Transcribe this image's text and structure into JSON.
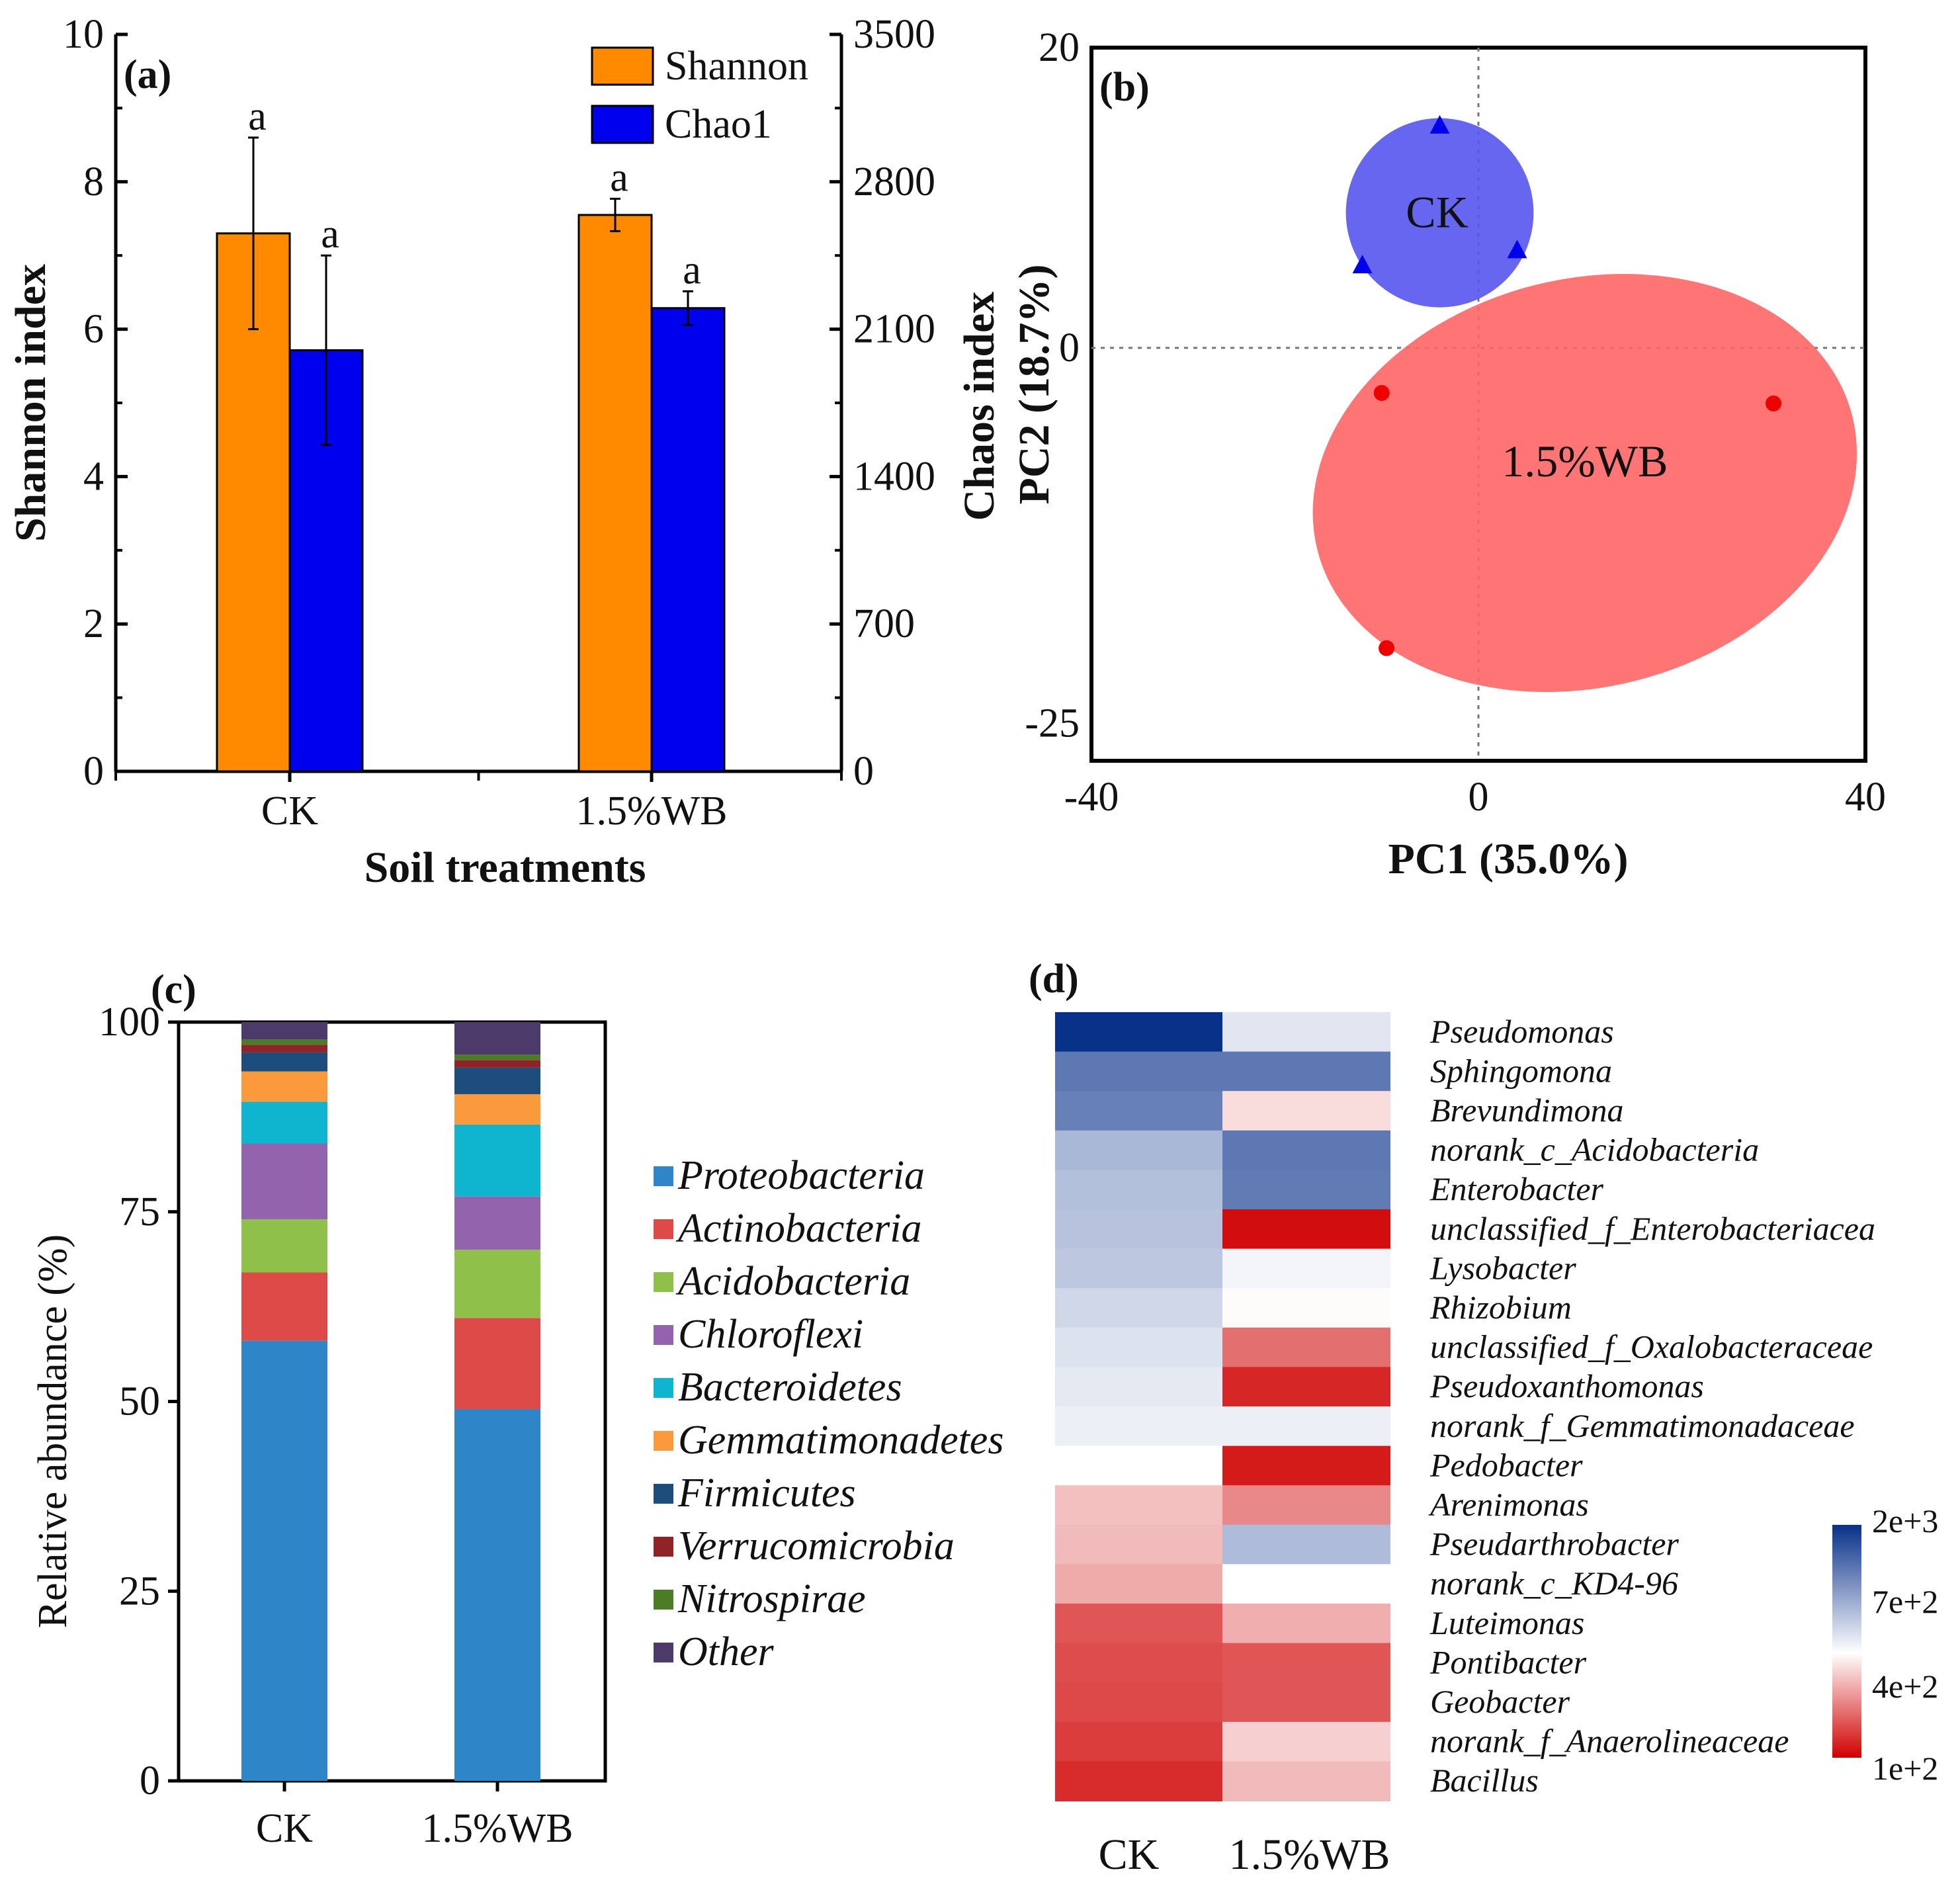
{
  "chart_data": [
    {
      "panel": "(a)",
      "type": "bar",
      "categories": [
        "CK",
        "1.5%WB"
      ],
      "series": [
        {
          "name": "Shannon",
          "axis": "left",
          "color": "#FF8A00",
          "values": [
            7.3,
            7.55
          ],
          "errors": [
            1.3,
            0.22
          ],
          "letters": [
            "a",
            "a"
          ]
        },
        {
          "name": "Chao1",
          "axis": "right",
          "color": "#0000EE",
          "values": [
            2000,
            2200
          ],
          "errors": [
            450,
            80
          ],
          "letters": [
            "a",
            "a"
          ]
        }
      ],
      "xlabel": "Soil treatments",
      "ylabel": "Shannon index",
      "y2label": "Chaos index",
      "ylim": [
        0,
        10
      ],
      "y2lim": [
        0,
        3500
      ],
      "yticks": [
        0,
        2,
        4,
        6,
        8,
        10
      ],
      "y2ticks": [
        0,
        700,
        1400,
        2100,
        2800,
        3500
      ],
      "legend_position": "top-right"
    },
    {
      "panel": "(b)",
      "type": "scatter",
      "xlabel": "PC1 (35.0%)",
      "ylabel": "PC2 (18.7%)",
      "xlim": [
        -40,
        40
      ],
      "ylim": [
        -27.5,
        20
      ],
      "xticks": [
        -40,
        0,
        40
      ],
      "yticks": [
        -25,
        0,
        20
      ],
      "groups": [
        {
          "name": "CK",
          "label": "CK",
          "marker": "triangle",
          "color": "#0000EE",
          "ellipse_color": "#5555EE",
          "points": [
            [
              -4,
              14.8
            ],
            [
              -12,
              5.5
            ],
            [
              4,
              6.5
            ]
          ],
          "ellipse": {
            "cx": -4,
            "cy": 9,
            "rx": 9.7,
            "ry": 6.3,
            "angle": 0
          }
        },
        {
          "name": "1.5%WB",
          "label": "1.5%WB",
          "marker": "circle",
          "color": "#EE0000",
          "ellipse_color": "#FF6666",
          "points": [
            [
              -10,
              -3
            ],
            [
              30.5,
              -3.7
            ],
            [
              -9.5,
              -20
            ]
          ],
          "ellipse": {
            "cx": 11,
            "cy": -9,
            "rx": 28.5,
            "ry": 13.6,
            "angle": -14
          }
        }
      ]
    },
    {
      "panel": "(c)",
      "type": "bar",
      "stacked": true,
      "categories": [
        "CK",
        "1.5%WB"
      ],
      "ylabel": "Relative abundance (%)",
      "ylim": [
        0,
        100
      ],
      "yticks": [
        0,
        25,
        50,
        75,
        100
      ],
      "series": [
        {
          "name": "Proteobacteria",
          "color": "#2E86C8",
          "values": [
            58,
            49
          ]
        },
        {
          "name": "Actinobacteria",
          "color": "#DD4A48",
          "values": [
            9,
            12
          ]
        },
        {
          "name": "Acidobacteria",
          "color": "#8FC049",
          "values": [
            7,
            9
          ]
        },
        {
          "name": "Chloroflexi",
          "color": "#9363AD",
          "values": [
            10,
            7
          ]
        },
        {
          "name": "Bacteroidetes",
          "color": "#0FB4CE",
          "values": [
            5.5,
            9.5
          ]
        },
        {
          "name": "Gemmatimonadetes",
          "color": "#FB9A3C",
          "values": [
            4,
            4
          ]
        },
        {
          "name": "Firmicutes",
          "color": "#1C4D7C",
          "values": [
            2.5,
            3.5
          ]
        },
        {
          "name": "Verrucomicrobia",
          "color": "#8F2327",
          "values": [
            1.0,
            1.0
          ]
        },
        {
          "name": "Nitrospirae",
          "color": "#4D7C26",
          "values": [
            0.7,
            0.7
          ]
        },
        {
          "name": "Other",
          "color": "#4C3B6A",
          "values": [
            2.3,
            4.3
          ]
        }
      ],
      "legend_position": "right"
    },
    {
      "panel": "(d)",
      "type": "heatmap",
      "columns": [
        "CK",
        "1.5%WB"
      ],
      "rows": [
        "Pseudomonas",
        "Sphingomona",
        "Brevundimona",
        "norank_c_Acidobacteria",
        "Enterobacter",
        "unclassified_f_Enterobacteriacea",
        "Lysobacter",
        "Rhizobium",
        "unclassified_f_Oxalobacteraceae",
        "Pseudoxanthomonas",
        "norank_f_Gemmatimonadaceae",
        "Pedobacter",
        "Arenimonas",
        "Pseudarthrobacter",
        "norank_c_KD4-96",
        "Luteimonas",
        "Pontibacter",
        "Geobacter",
        "norank_f_Anaerolineaceae",
        "Bacillus"
      ],
      "values": [
        [
          2000,
          860
        ],
        [
          1550,
          1550
        ],
        [
          1500,
          620
        ],
        [
          1150,
          1550
        ],
        [
          1100,
          1530
        ],
        [
          1080,
          130
        ],
        [
          1050,
          760
        ],
        [
          950,
          690
        ],
        [
          880,
          360
        ],
        [
          840,
          190
        ],
        [
          800,
          800
        ],
        [
          700,
          160
        ],
        [
          550,
          420
        ],
        [
          540,
          1120
        ],
        [
          500,
          700
        ],
        [
          300,
          510
        ],
        [
          280,
          300
        ],
        [
          270,
          300
        ],
        [
          240,
          590
        ],
        [
          200,
          540
        ]
      ],
      "colorbar_ticks": [
        "2e+3",
        "7e+2",
        "4e+2",
        "1e+2"
      ],
      "colorscale": [
        "#D00000",
        "#FFFFFF",
        "#08318A"
      ]
    }
  ]
}
